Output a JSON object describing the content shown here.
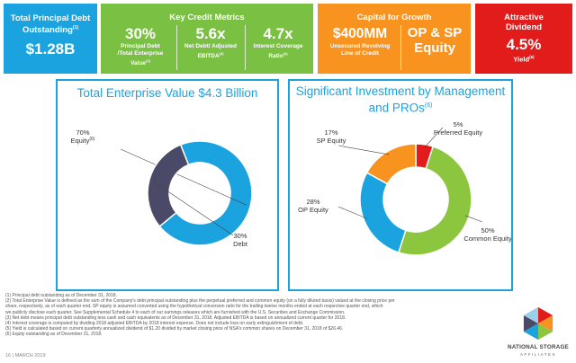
{
  "tiles": {
    "debt": {
      "title": "Total Principal Debt Outstanding",
      "footnote": "(1)",
      "value": "$1.28B"
    },
    "credit": {
      "title": "Key Credit Metrics",
      "metrics": [
        {
          "value": "30%",
          "label": "Principal Debt /Total Enterprise Value",
          "footnote": "(2)"
        },
        {
          "value": "5.6x",
          "label": "Net Debt/ Adjusted EBITDA",
          "footnote": "(3)"
        },
        {
          "value": "4.7x",
          "label": "Interest Coverage Ratio",
          "footnote": "(4)"
        }
      ]
    },
    "capital": {
      "title": "Capital for Growth",
      "revolver_value": "$400MM",
      "revolver_label": "Unsecured Revolving Line of Credit",
      "equity_label": "OP & SP Equity"
    },
    "dividend": {
      "title": "Attractive Dividend",
      "value": "4.5%",
      "label": "Yield",
      "footnote": "(5)"
    }
  },
  "chart_data": [
    {
      "type": "pie",
      "title": "Total Enterprise Value $4.3 Billion",
      "categories": [
        "Equity",
        "Debt"
      ],
      "values": [
        70,
        30
      ],
      "value_labels": [
        "70%",
        "30%"
      ],
      "footnotes": [
        "(6)",
        ""
      ],
      "colors": [
        "#1aa3df",
        "#4a4a68"
      ]
    },
    {
      "type": "pie",
      "title": "Significant Investment by Management and PROs",
      "title_footnote": "(6)",
      "categories": [
        "Preferred Equity",
        "Common Equity",
        "OP Equity",
        "SP Equity"
      ],
      "values": [
        5,
        50,
        28,
        17
      ],
      "value_labels": [
        "5%",
        "50%",
        "28%",
        "17%"
      ],
      "colors": [
        "#e21b1b",
        "#8cc63f",
        "#1aa3df",
        "#f7931e"
      ]
    }
  ],
  "footnotes": [
    "(1) Principal debt outstanding as of December 31, 2018.",
    "(2) Total Enterprise Value is defined as the sum of the Company's debt principal outstanding plus the perpetual preferred and common equity (on a fully diluted basis) valued at the closing price per",
    "share, respectively, as of each quarter end. SP equity is assumed converted using the hypothetical conversion ratio for the trailing twelve months ended at each respective quarter end, which",
    "we publicly disclose each quarter. See Supplemental Schedule 4 to each of our earnings releases which are furnished with the U.S. Securities and Exchange Commission.",
    "(3) Net debt means principal debt outstanding less cash and cash equivalents as of December 31, 2018. Adjusted EBITDA is based on annualized current quarter for 2018.",
    "(4) Interest coverage is computed by dividing 2018 adjusted EBITDA by 2018 interest expense. Does not include loss on early extinguishment of debt.",
    "(5) Yield is calculated based on current quarterly annualized dividend of $1.20 divided by market closing price of NSA's common shares on December 31, 2018 of $26.46.",
    "(6) Equity outstanding as of December 31, 2018."
  ],
  "page_footer": "16 | MARCH 2019",
  "logo": {
    "name": "NATIONAL STORAGE",
    "sub": "AFFILIATES"
  }
}
